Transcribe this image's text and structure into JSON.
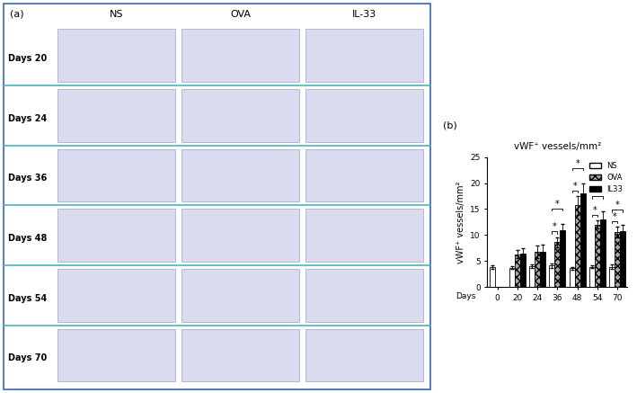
{
  "panel_a": {
    "label": "(a)",
    "columns": [
      "NS",
      "OVA",
      "IL-33"
    ],
    "rows": [
      "Days 20",
      "Days 24",
      "Days 36",
      "Days 48",
      "Days 54",
      "Days 70"
    ]
  },
  "chart_data": {
    "type": "bar",
    "label": "(b)",
    "title": "vWF⁺ vessels/mm²",
    "y_label": "vWF⁺ vessels/mm²",
    "x_label": "Days",
    "categories": [
      "0",
      "20",
      "24",
      "36",
      "48",
      "54",
      "70"
    ],
    "series": [
      {
        "name": "NS",
        "color": "#ffffff",
        "values": [
          3.8,
          3.7,
          4.0,
          4.1,
          3.6,
          3.9,
          3.9
        ],
        "errors": [
          0.3,
          0.3,
          0.3,
          0.4,
          0.3,
          0.3,
          0.4
        ]
      },
      {
        "name": "OVA",
        "color": "#a6a6a6",
        "values": [
          null,
          6.3,
          6.8,
          8.6,
          15.7,
          12.0,
          10.6
        ],
        "errors": [
          null,
          0.8,
          1.2,
          1.0,
          1.8,
          0.8,
          1.0
        ]
      },
      {
        "name": "IL33",
        "color": "#000000",
        "values": [
          null,
          6.5,
          6.8,
          11.0,
          18.0,
          13.0,
          10.8
        ],
        "errors": [
          null,
          0.9,
          1.3,
          1.2,
          2.0,
          1.6,
          1.2
        ]
      }
    ],
    "significance": [
      {
        "category": "36",
        "pair": [
          "NS",
          "OVA"
        ],
        "label": "*"
      },
      {
        "category": "36",
        "pair": [
          "NS",
          "IL33"
        ],
        "label": "*"
      },
      {
        "category": "48",
        "pair": [
          "NS",
          "OVA"
        ],
        "label": "*"
      },
      {
        "category": "48",
        "pair": [
          "NS",
          "IL33"
        ],
        "label": "*"
      },
      {
        "category": "54",
        "pair": [
          "NS",
          "OVA"
        ],
        "label": "*"
      },
      {
        "category": "54",
        "pair": [
          "NS",
          "IL33"
        ],
        "label": "*"
      },
      {
        "category": "70",
        "pair": [
          "NS",
          "OVA"
        ],
        "label": "*"
      },
      {
        "category": "70",
        "pair": [
          "NS",
          "IL33"
        ],
        "label": "*"
      }
    ],
    "ylim": [
      0,
      25
    ],
    "yticks": [
      0,
      5,
      10,
      15,
      20,
      25
    ],
    "legend": "upper right"
  }
}
